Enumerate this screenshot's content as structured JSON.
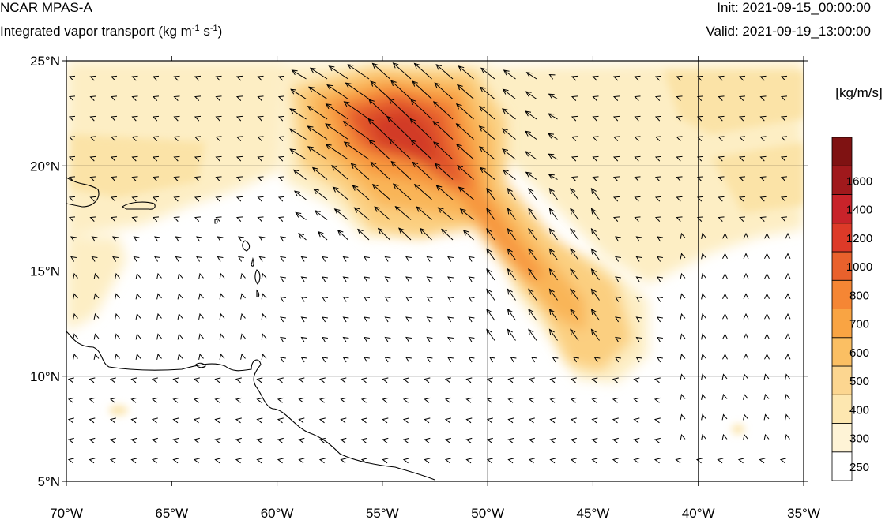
{
  "header": {
    "title": "NCAR MPAS-A",
    "subtitle_pre": "Integrated vapor transport (kg m",
    "subtitle_exp1": "-1",
    "subtitle_mid": " s",
    "subtitle_exp2": "-1",
    "subtitle_post": ")",
    "init": "Init: 2021-09-15_00:00:00",
    "valid": "Valid: 2021-09-19_13:00:00"
  },
  "map": {
    "lon_range": [
      -70,
      -35
    ],
    "lat_range": [
      5,
      25
    ],
    "lat_ticks": [
      {
        "value": 25,
        "label": "25°N"
      },
      {
        "value": 20,
        "label": "20°N"
      },
      {
        "value": 15,
        "label": "15°N"
      },
      {
        "value": 10,
        "label": "10°N"
      },
      {
        "value": 5,
        "label": "5°N"
      }
    ],
    "lon_ticks": [
      {
        "value": -70,
        "label": "70°W"
      },
      {
        "value": -65,
        "label": "65°W"
      },
      {
        "value": -60,
        "label": "60°W"
      },
      {
        "value": -55,
        "label": "55°W"
      },
      {
        "value": -50,
        "label": "50°W"
      },
      {
        "value": -45,
        "label": "45°W"
      },
      {
        "value": -40,
        "label": "40°W"
      },
      {
        "value": -35,
        "label": "35°W"
      }
    ],
    "grid_lats": [
      20,
      15,
      10
    ],
    "grid_lons": [
      -60,
      -50,
      -40
    ]
  },
  "colorbar": {
    "unit_label": "[kg/m/s]",
    "levels": [
      "250",
      "300",
      "400",
      "500",
      "600",
      "700",
      "800",
      "1000",
      "1200",
      "1400",
      "1600"
    ],
    "colors": [
      "#ffffff",
      "#fef3d6",
      "#fde7b0",
      "#fcd690",
      "#fbbf63",
      "#f9a443",
      "#f58634",
      "#e9612c",
      "#dd3a28",
      "#c8232a",
      "#a0191c",
      "#7f1212"
    ]
  }
}
